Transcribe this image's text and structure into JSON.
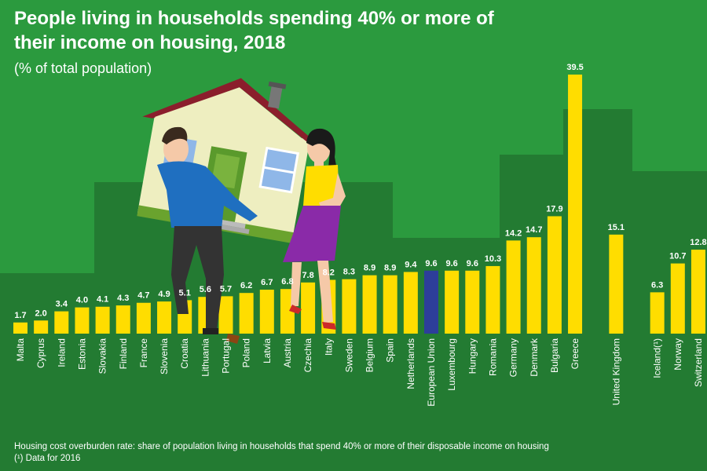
{
  "title": "People living in households spending 40% or more of their income on housing, 2018",
  "subtitle": "(% of total population)",
  "footnotes": [
    "Housing cost overburden rate: share of population living in households that spend 40% or more of their disposable income on housing",
    "(¹) Data for 2016"
  ],
  "colors": {
    "background": "#2b9a3e",
    "dark_band": "#237b32",
    "bar": "#ffdd00",
    "eu_bar": "#2d3e9a",
    "text": "#ffffff"
  },
  "illustration": {
    "description_icon": "couple-carrying-house-icon"
  },
  "chart_data": {
    "type": "bar",
    "title": "People living in households spending 40% or more of their income on housing, 2018",
    "subtitle": "(% of total population)",
    "unit": "% of total population",
    "ylim": [
      0,
      40
    ],
    "grid": false,
    "legend": "none",
    "categories": [
      "Malta",
      "Cyprus",
      "Ireland",
      "Estonia",
      "Slovakia",
      "Finland",
      "France",
      "Slovenia",
      "Croatia",
      "Lithuania",
      "Portugal",
      "Poland",
      "Latvia",
      "Austria",
      "Czechia",
      "Italy",
      "Sweden",
      "Belgium",
      "Spain",
      "Netherlands",
      "European Union",
      "Luxembourg",
      "Hungary",
      "Romania",
      "Germany",
      "Denmark",
      "Bulgaria",
      "Greece",
      "United Kingdom",
      "Iceland(¹)",
      "Norway",
      "Switzerland"
    ],
    "values": [
      1.7,
      2.0,
      3.4,
      4.0,
      4.1,
      4.3,
      4.7,
      4.9,
      5.1,
      5.6,
      5.7,
      6.2,
      6.7,
      6.8,
      7.8,
      8.2,
      8.3,
      8.9,
      8.9,
      9.4,
      9.6,
      9.6,
      9.6,
      10.3,
      14.2,
      14.7,
      17.9,
      39.5,
      15.1,
      6.3,
      10.7,
      12.8
    ],
    "value_labels": [
      "1.7",
      "2.0",
      "3.4",
      "4.0",
      "4.1",
      "4.3",
      "4.7",
      "4.9",
      "5.1",
      "5.6",
      "5.7",
      "6.2",
      "6.7",
      "6.8",
      "7.8",
      "8.2",
      "8.3",
      "8.9",
      "8.9",
      "9.4",
      "9.6",
      "9.6",
      "9.6",
      "10.3",
      "14.2",
      "14.7",
      "17.9",
      "39.5",
      "15.1",
      "6.3",
      "10.7",
      "12.8"
    ],
    "highlight": "European Union",
    "groups": [
      {
        "members": [
          "Malta",
          "Cyprus",
          "Ireland",
          "Estonia",
          "Slovakia",
          "Finland",
          "France",
          "Slovenia",
          "Croatia",
          "Lithuania",
          "Portugal",
          "Poland",
          "Latvia",
          "Austria",
          "Czechia",
          "Italy",
          "Sweden",
          "Belgium",
          "Spain",
          "Netherlands",
          "European Union",
          "Luxembourg",
          "Hungary",
          "Romania",
          "Germany",
          "Denmark",
          "Bulgaria",
          "Greece"
        ]
      },
      {
        "members": [
          "United Kingdom"
        ]
      },
      {
        "members": [
          "Iceland(¹)",
          "Norway",
          "Switzerland"
        ]
      }
    ]
  }
}
